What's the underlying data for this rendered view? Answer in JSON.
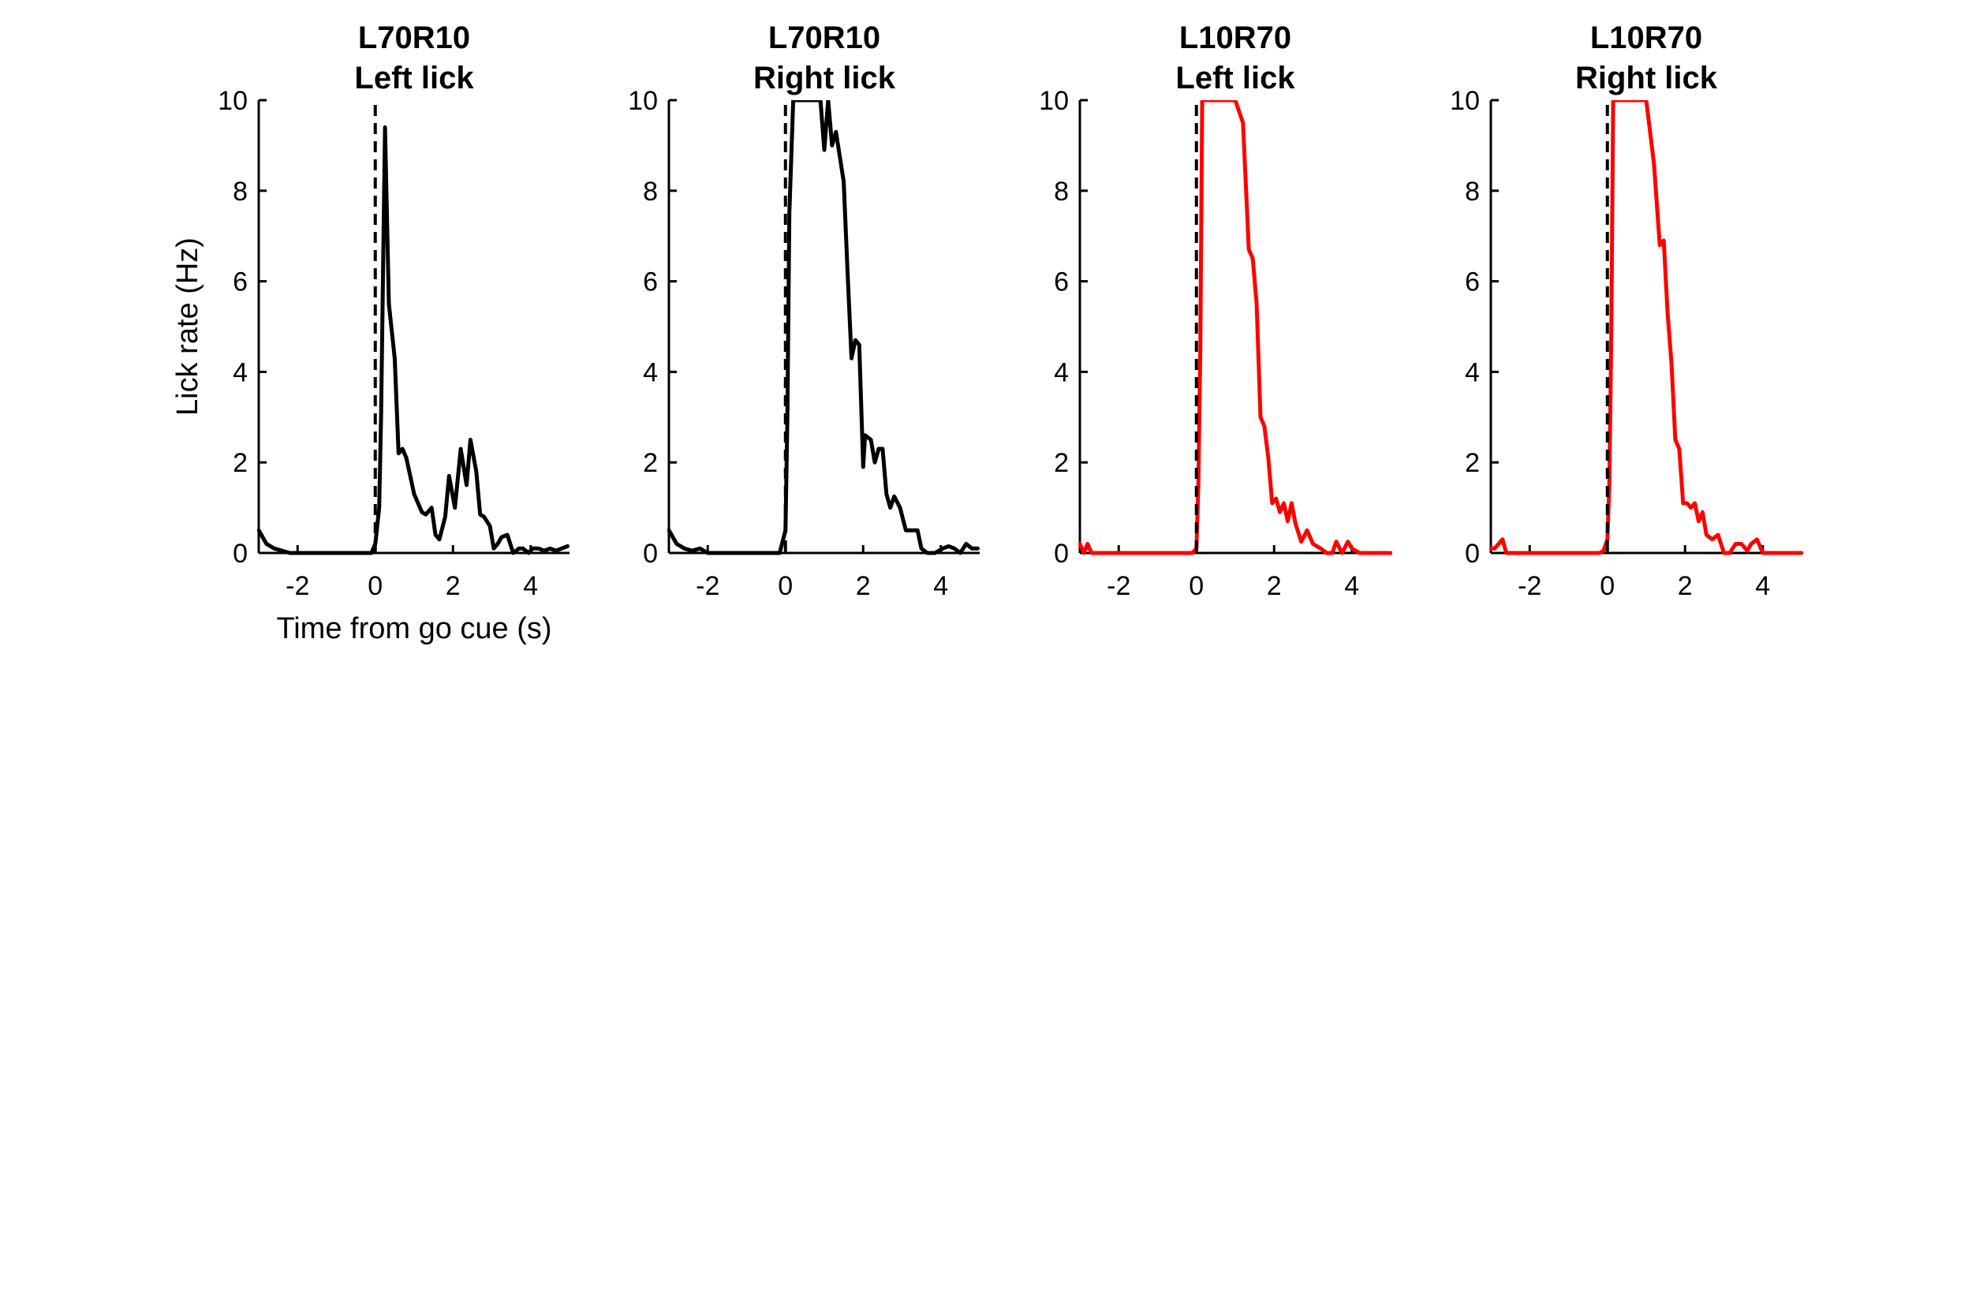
{
  "chart_data": [
    {
      "type": "line",
      "title": [
        "L70R10",
        "Left lick"
      ],
      "xlabel": "Time from go cue (s)",
      "ylabel": "Lick rate (Hz)",
      "xlim": [
        -3,
        5
      ],
      "ylim": [
        0,
        10
      ],
      "xticks": [
        "-2",
        "0",
        "2",
        "4"
      ],
      "yticks": [
        "0",
        "2",
        "4",
        "6",
        "8",
        "10"
      ],
      "grid": false,
      "vline": 0,
      "series": [
        {
          "color": "#000000",
          "x": [
            -3,
            -2.8,
            -2.6,
            -2.4,
            -2.2,
            -0.1,
            0,
            0.1,
            0.15,
            0.25,
            0.35,
            0.5,
            0.6,
            0.7,
            0.8,
            0.9,
            1,
            1.2,
            1.3,
            1.45,
            1.55,
            1.65,
            1.8,
            1.9,
            2.05,
            2.2,
            2.35,
            2.45,
            2.6,
            2.7,
            2.8,
            2.95,
            3.05,
            3.15,
            3.25,
            3.4,
            3.55,
            3.7,
            3.8,
            3.95,
            4.05,
            4.2,
            4.35,
            4.5,
            4.65,
            4.8,
            4.95
          ],
          "y": [
            0.5,
            0.2,
            0.1,
            0.05,
            0,
            0,
            0.2,
            1,
            3,
            9.4,
            5.5,
            4.3,
            2.2,
            2.3,
            2.1,
            1.7,
            1.3,
            0.9,
            0.85,
            1.0,
            0.4,
            0.3,
            0.8,
            1.7,
            1.0,
            2.3,
            1.5,
            2.5,
            1.8,
            0.85,
            0.8,
            0.6,
            0.1,
            0.2,
            0.35,
            0.4,
            0.0,
            0.1,
            0.1,
            0.0,
            0.1,
            0.1,
            0.05,
            0.1,
            0.05,
            0.1,
            0.15
          ]
        }
      ]
    },
    {
      "type": "line",
      "title": [
        "L70R10",
        "Right lick"
      ],
      "xlabel": "",
      "ylabel": "",
      "xlim": [
        -3,
        5
      ],
      "ylim": [
        0,
        10
      ],
      "xticks": [
        "-2",
        "0",
        "2",
        "4"
      ],
      "yticks": [
        "0",
        "2",
        "4",
        "6",
        "8",
        "10"
      ],
      "grid": false,
      "vline": 0,
      "series": [
        {
          "color": "#000000",
          "x": [
            -3,
            -2.8,
            -2.6,
            -2.4,
            -2.2,
            -2.0,
            -0.15,
            0,
            0.05,
            0.1,
            0.2,
            0.6,
            0.9,
            1.0,
            1.1,
            1.2,
            1.3,
            1.5,
            1.6,
            1.7,
            1.8,
            1.9,
            2.0,
            2.05,
            2.2,
            2.3,
            2.4,
            2.5,
            2.6,
            2.7,
            2.8,
            2.95,
            3.1,
            3.2,
            3.4,
            3.5,
            3.65,
            3.85,
            4.05,
            4.2,
            4.35,
            4.5,
            4.65,
            4.8,
            4.95
          ],
          "y": [
            0.5,
            0.2,
            0.1,
            0.05,
            0.1,
            0,
            0,
            0.5,
            3,
            7.5,
            10,
            10,
            10,
            8.9,
            10,
            9.0,
            9.3,
            8.2,
            6.2,
            4.3,
            4.7,
            4.6,
            1.9,
            2.6,
            2.5,
            2.0,
            2.3,
            2.3,
            1.3,
            1.0,
            1.25,
            1.0,
            0.5,
            0.5,
            0.5,
            0.1,
            0,
            0,
            0.1,
            0.15,
            0.1,
            0.0,
            0.2,
            0.1,
            0.1
          ]
        }
      ]
    },
    {
      "type": "line",
      "title": [
        "L10R70",
        "Left lick"
      ],
      "xlabel": "",
      "ylabel": "",
      "xlim": [
        -3,
        5
      ],
      "ylim": [
        0,
        10
      ],
      "xticks": [
        "-2",
        "0",
        "2",
        "4"
      ],
      "yticks": [
        "0",
        "2",
        "4",
        "6",
        "8",
        "10"
      ],
      "grid": false,
      "vline": 0,
      "series": [
        {
          "color": "#ff0000",
          "x": [
            -3,
            -2.9,
            -2.8,
            -2.7,
            -2.6,
            -0.1,
            0,
            0.05,
            0.1,
            0.15,
            1.0,
            1.2,
            1.35,
            1.45,
            1.55,
            1.65,
            1.75,
            1.85,
            1.95,
            2.05,
            2.15,
            2.25,
            2.35,
            2.45,
            2.55,
            2.7,
            2.85,
            3.0,
            3.2,
            3.35,
            3.5,
            3.6,
            3.75,
            3.9,
            4.0,
            4.2,
            4.5,
            4.8,
            5.0
          ],
          "y": [
            0.2,
            0,
            0.2,
            0,
            0,
            0,
            0.1,
            1.5,
            4.5,
            10,
            10,
            9.5,
            6.7,
            6.5,
            5.5,
            3.0,
            2.8,
            2.1,
            1.1,
            1.2,
            0.9,
            1.1,
            0.7,
            1.1,
            0.65,
            0.25,
            0.5,
            0.2,
            0.1,
            0.0,
            0.0,
            0.25,
            0.0,
            0.25,
            0.1,
            0,
            0,
            0,
            0
          ]
        }
      ]
    },
    {
      "type": "line",
      "title": [
        "L10R70",
        "Right lick"
      ],
      "xlabel": "",
      "ylabel": "",
      "xlim": [
        -3,
        5
      ],
      "ylim": [
        0,
        10
      ],
      "xticks": [
        "-2",
        "0",
        "2",
        "4"
      ],
      "yticks": [
        "0",
        "2",
        "4",
        "6",
        "8",
        "10"
      ],
      "grid": false,
      "vline": 0,
      "series": [
        {
          "color": "#ff0000",
          "x": [
            -3,
            -2.9,
            -2.7,
            -2.6,
            -2.5,
            -0.2,
            -0.1,
            0,
            0.05,
            0.1,
            0.15,
            1.0,
            1.2,
            1.35,
            1.45,
            1.55,
            1.65,
            1.75,
            1.85,
            1.95,
            2.05,
            2.15,
            2.25,
            2.35,
            2.45,
            2.55,
            2.7,
            2.85,
            3.0,
            3.15,
            3.3,
            3.45,
            3.6,
            3.7,
            3.85,
            4.0,
            4.3,
            4.6,
            5.0
          ],
          "y": [
            0.1,
            0.1,
            0.3,
            0.0,
            0.0,
            0,
            0.05,
            0.3,
            1.5,
            4.8,
            10,
            10,
            8.6,
            6.8,
            6.9,
            5.3,
            4.2,
            2.5,
            2.3,
            1.1,
            1.1,
            1.0,
            1.1,
            0.7,
            0.9,
            0.4,
            0.3,
            0.4,
            0.0,
            0.0,
            0.2,
            0.2,
            0.05,
            0.2,
            0.3,
            0.0,
            0,
            0,
            0
          ]
        }
      ]
    }
  ]
}
